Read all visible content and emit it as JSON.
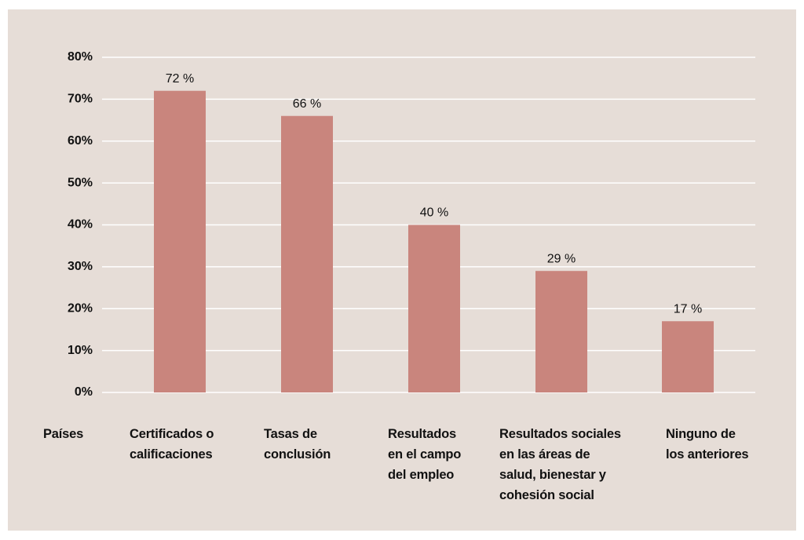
{
  "chart_data": {
    "type": "bar",
    "x_label": "Países",
    "categories": [
      "Certificados o\ncalificaciones",
      "Tasas de\nconclusión",
      "Resultados\nen el campo\ndel empleo",
      "Resultados sociales\nen las áreas de\nsalud, bienestar y\ncohesión social",
      "Ninguno de\nlos anteriores"
    ],
    "values": [
      72,
      66,
      40,
      29,
      17
    ],
    "value_labels": [
      "72 %",
      "66 %",
      "40 %",
      "29 %",
      "17 %"
    ],
    "color": "#c9857d",
    "ylim": [
      0,
      80
    ],
    "yticks": [
      {
        "value": 0,
        "label": "0%"
      },
      {
        "value": 10,
        "label": "10%"
      },
      {
        "value": 20,
        "label": "20%"
      },
      {
        "value": 30,
        "label": "30%"
      },
      {
        "value": 40,
        "label": "40%"
      },
      {
        "value": 50,
        "label": "50%"
      },
      {
        "value": 60,
        "label": "60%"
      },
      {
        "value": 70,
        "label": "70%"
      },
      {
        "value": 80,
        "label": "80%"
      }
    ],
    "grid": true
  }
}
